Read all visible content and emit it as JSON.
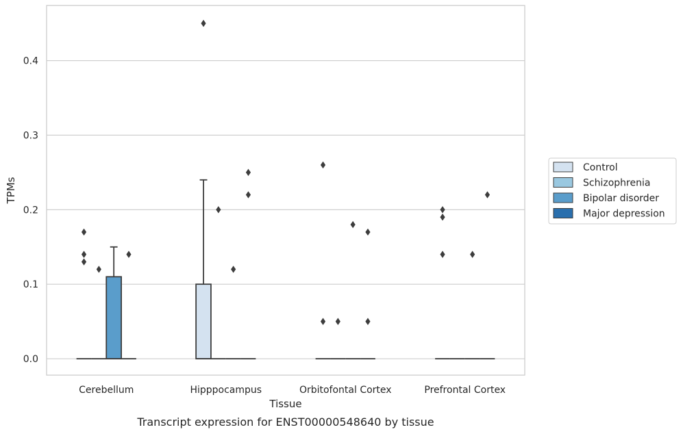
{
  "chart_data": {
    "type": "box",
    "caption": "Transcript expression for ENST00000548640 by tissue",
    "xlabel": "Tissue",
    "ylabel": "TPMs",
    "ylim": [
      -0.022,
      0.474
    ],
    "yticks": [
      0.0,
      0.1,
      0.2,
      0.3,
      0.4
    ],
    "ytick_labels": [
      "0.0",
      "0.1",
      "0.2",
      "0.3",
      "0.4"
    ],
    "grid": "horizontal",
    "legend_position": "right",
    "categories": [
      "Cerebellum",
      "Hipppocampus",
      "Orbitofontal Cortex",
      "Prefrontal Cortex"
    ],
    "series": [
      {
        "name": "Control",
        "color": "#d4e2f0",
        "boxes": [
          {
            "q1": 0,
            "median": 0,
            "q3": 0,
            "whisker_low": 0,
            "whisker_high": 0,
            "outliers": [
              0.13,
              0.14,
              0.17
            ]
          },
          {
            "q1": 0,
            "median": 0,
            "q3": 0.1,
            "whisker_low": 0,
            "whisker_high": 0.24,
            "outliers": [
              0.45
            ]
          },
          {
            "q1": 0,
            "median": 0,
            "q3": 0,
            "whisker_low": 0,
            "whisker_high": 0,
            "outliers": [
              0.05,
              0.26
            ]
          },
          {
            "q1": 0,
            "median": 0,
            "q3": 0,
            "whisker_low": 0,
            "whisker_high": 0,
            "outliers": [
              0.14,
              0.19,
              0.2
            ]
          }
        ]
      },
      {
        "name": "Schizophrenia",
        "color": "#9ac8e0",
        "boxes": [
          {
            "q1": 0,
            "median": 0,
            "q3": 0,
            "whisker_low": 0,
            "whisker_high": 0,
            "outliers": [
              0.12
            ]
          },
          {
            "q1": 0,
            "median": 0,
            "q3": 0,
            "whisker_low": 0,
            "whisker_high": 0,
            "outliers": [
              0.2
            ]
          },
          {
            "q1": 0,
            "median": 0,
            "q3": 0,
            "whisker_low": 0,
            "whisker_high": 0,
            "outliers": [
              0.05
            ]
          },
          {
            "q1": 0,
            "median": 0,
            "q3": 0,
            "whisker_low": 0,
            "whisker_high": 0,
            "outliers": []
          }
        ]
      },
      {
        "name": "Bipolar disorder",
        "color": "#5a9dcb",
        "boxes": [
          {
            "q1": 0,
            "median": 0,
            "q3": 0.11,
            "whisker_low": 0,
            "whisker_high": 0.15,
            "outliers": []
          },
          {
            "q1": 0,
            "median": 0,
            "q3": 0,
            "whisker_low": 0,
            "whisker_high": 0,
            "outliers": [
              0.12
            ]
          },
          {
            "q1": 0,
            "median": 0,
            "q3": 0,
            "whisker_low": 0,
            "whisker_high": 0,
            "outliers": [
              0.18
            ]
          },
          {
            "q1": 0,
            "median": 0,
            "q3": 0,
            "whisker_low": 0,
            "whisker_high": 0,
            "outliers": [
              0.14
            ]
          }
        ]
      },
      {
        "name": "Major depression",
        "color": "#2a6fad",
        "boxes": [
          {
            "q1": 0,
            "median": 0,
            "q3": 0,
            "whisker_low": 0,
            "whisker_high": 0,
            "outliers": [
              0.14
            ]
          },
          {
            "q1": 0,
            "median": 0,
            "q3": 0,
            "whisker_low": 0,
            "whisker_high": 0,
            "outliers": [
              0.22,
              0.25
            ]
          },
          {
            "q1": 0,
            "median": 0,
            "q3": 0,
            "whisker_low": 0,
            "whisker_high": 0,
            "outliers": [
              0.05,
              0.17
            ]
          },
          {
            "q1": 0,
            "median": 0,
            "q3": 0,
            "whisker_low": 0,
            "whisker_high": 0,
            "outliers": [
              0.22
            ]
          }
        ]
      }
    ]
  }
}
